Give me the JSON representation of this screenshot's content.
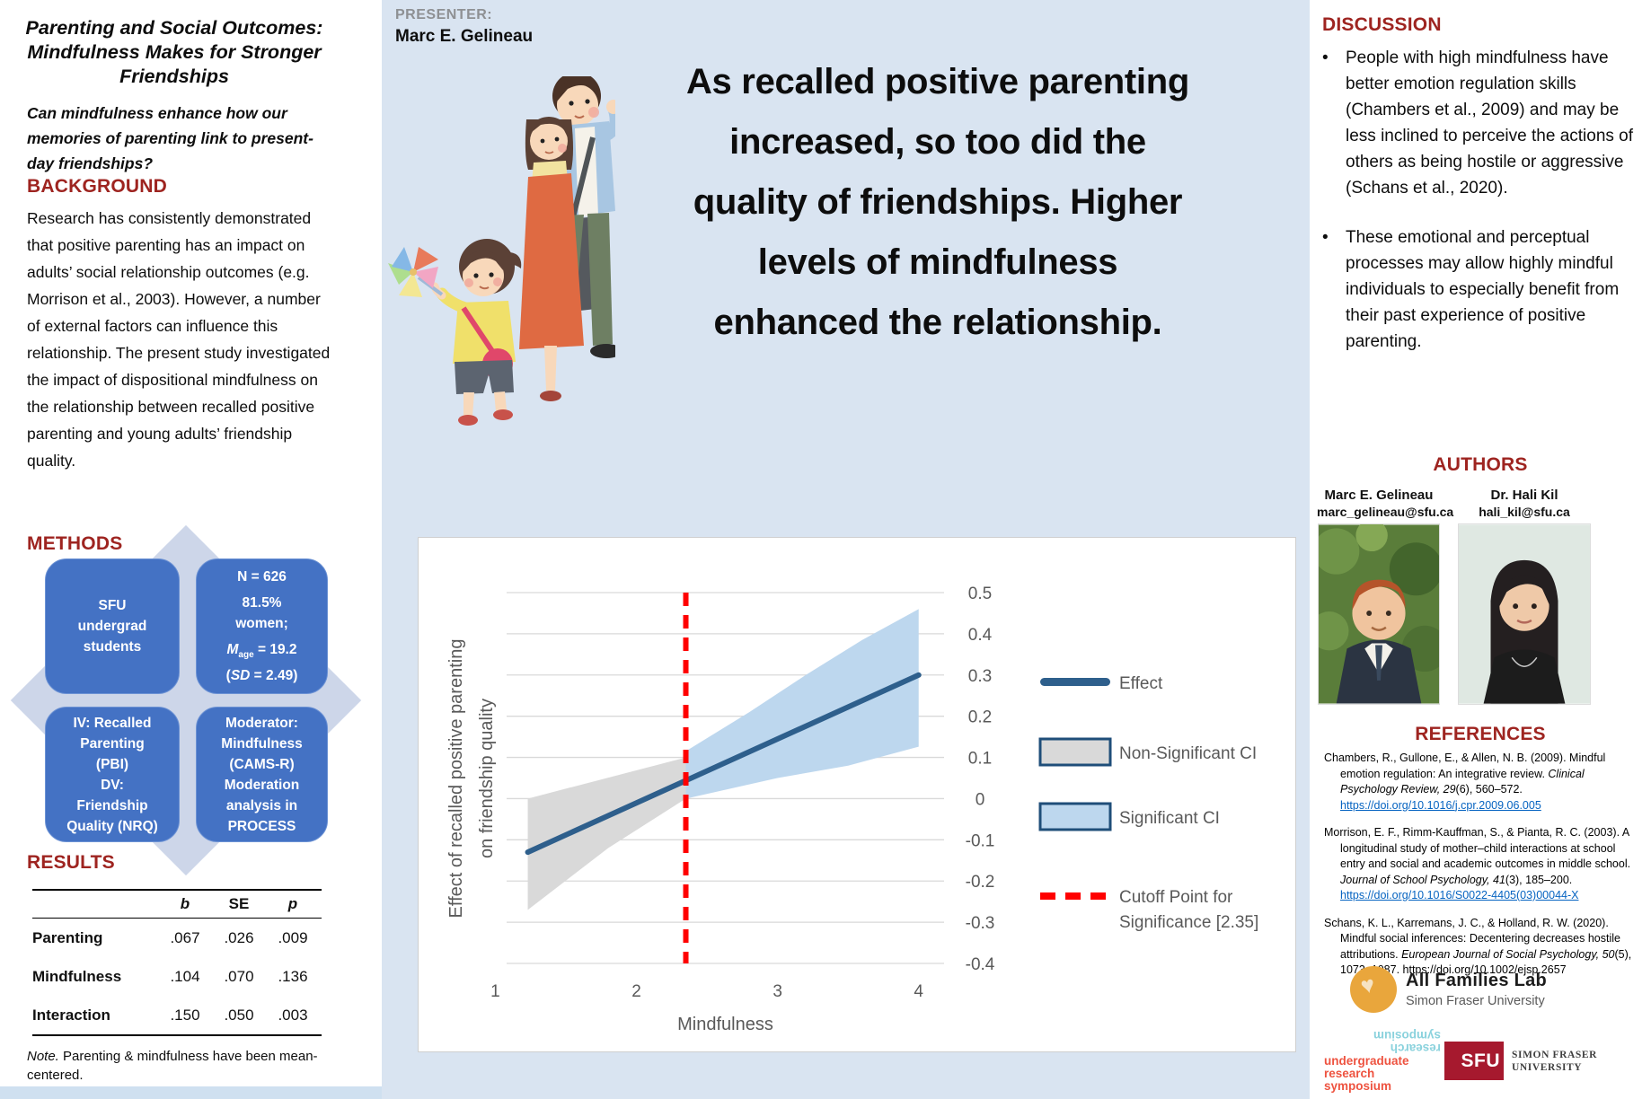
{
  "colors": {
    "heading_red": "#9e2420",
    "methods_box_blue": "#4472c4",
    "diamond_lilac": "#cdd6e9",
    "panel_blue": "#d9e4f1",
    "link_blue": "#0563c1",
    "presenter_gray": "#8e9093",
    "sfu_red": "#a6192e",
    "afl_orange": "#e9a63c",
    "urs_orange": "#ee5340",
    "urs_teal": "#8ad2dd"
  },
  "left": {
    "title": "Parenting and Social Outcomes:\nMindfulness Makes for Stronger\nFriendships",
    "subtitle": "Can mindfulness enhance how our\nmemories of parenting link to present-\nday friendships?",
    "background": {
      "heading": "BACKGROUND",
      "body": "Research has consistently demonstrated that positive parenting has an impact on adults’ social relationship outcomes (e.g. Morrison et al., 2003). However, a number of external factors can influence this relationship. The present study investigated the impact of dispositional mindfulness on the relationship between recalled positive parenting and young adults’ friendship quality."
    },
    "methods": {
      "heading": "METHODS",
      "box1": "SFU\nundergrad\nstudents",
      "box2_n": "N = 626",
      "box2_women": "81.5%\nwomen;",
      "box2_m": "M",
      "box2_sub": "age",
      "box2_eq": " = 19.2",
      "box2_open": "(",
      "box2_sd": "SD",
      "box2_close": " = 2.49)",
      "box3_a": "IV: Recalled\nParenting\n(PBI)",
      "box3_b": "DV:\nFriendship\nQuality (NRQ)",
      "box4_a": "Moderator:\nMindfulness\n(CAMS-R)",
      "box4_b": "Moderation\nanalysis in\nPROCESS"
    },
    "results": {
      "heading": "RESULTS",
      "table": {
        "headers": [
          "",
          "b",
          "SE",
          "p"
        ],
        "rows": [
          {
            "label": "Parenting",
            "b": ".067",
            "se": ".026",
            "p": ".009"
          },
          {
            "label": "Mindfulness",
            "b": ".104",
            "se": ".070",
            "p": ".136"
          },
          {
            "label": "Interaction",
            "b": ".150",
            "se": ".050",
            "p": ".003"
          }
        ]
      },
      "note_lead": "Note.",
      "note_rest": " Parenting & mindfulness have been mean-centered."
    }
  },
  "center": {
    "presenter_label": "PRESENTER:",
    "presenter_name": "Marc E. Gelineau",
    "headline": "As recalled positive parenting\nincreased, so too did the\nquality of friendships. Higher\nlevels of mindfulness\nenhanced the relationship."
  },
  "chart_data": {
    "type": "line",
    "title": "",
    "xlabel": "Mindfulness",
    "ylabel": "Effect of recalled positive parenting\non friendship quality",
    "xlim": [
      1.08,
      4.18
    ],
    "ylim": [
      -0.4,
      0.5
    ],
    "xticks": [
      1,
      2,
      3,
      4
    ],
    "yticks": [
      0.5,
      0.4,
      0.3,
      0.2,
      0.1,
      0,
      -0.1,
      -0.2,
      -0.3,
      -0.4
    ],
    "grid": "horizontal",
    "legend_position": "right",
    "colors": {
      "effect": "#2e5f8c",
      "nonsig": "#d9d9d9",
      "sig": "#bdd7ee",
      "cutoff": "#ff0000",
      "border": "#1f4e79",
      "grid": "#d9d9d9",
      "text": "#595959"
    },
    "series": [
      {
        "name": "Effect",
        "kind": "line",
        "points": [
          [
            1.23,
            -0.13
          ],
          [
            4.0,
            0.3
          ]
        ]
      },
      {
        "name": "Non-Significant CI",
        "kind": "band",
        "fill": "nonsig",
        "upper": [
          [
            1.23,
            0.0
          ],
          [
            2.35,
            0.1
          ]
        ],
        "lower": [
          [
            1.23,
            -0.27
          ],
          [
            1.8,
            -0.12
          ],
          [
            2.35,
            0.0
          ]
        ]
      },
      {
        "name": "Significant CI",
        "kind": "band",
        "fill": "sig",
        "upper": [
          [
            2.35,
            0.115
          ],
          [
            2.8,
            0.21
          ],
          [
            3.2,
            0.3
          ],
          [
            3.6,
            0.385
          ],
          [
            4.0,
            0.46
          ]
        ],
        "lower": [
          [
            2.35,
            0.0
          ],
          [
            3.0,
            0.05
          ],
          [
            3.5,
            0.08
          ],
          [
            4.0,
            0.126
          ]
        ]
      },
      {
        "name": "Cutoff Point for Significance",
        "kind": "vline",
        "x": 2.35
      }
    ],
    "cutoff_x": 2.35,
    "legend": [
      {
        "label": "Effect",
        "swatch": "line"
      },
      {
        "label": "Non-Significant CI",
        "swatch": "box-gray"
      },
      {
        "label": "Significant CI",
        "swatch": "box-blue"
      },
      {
        "label": "Cutoff Point for\nSignificance [2.35]",
        "swatch": "dash-red"
      }
    ]
  },
  "right": {
    "discussion": {
      "heading": "DISCUSSION",
      "bullets": [
        "People with high mindfulness have better emotion regulation skills (Chambers et al., 2009) and may be less inclined to perceive the actions of others as being hostile or aggressive (Schans et al., 2020).",
        "These emotional and perceptual processes may allow highly mindful individuals to especially benefit from their past experience of positive parenting."
      ]
    },
    "authors": {
      "heading": "AUTHORS",
      "people": [
        {
          "name": "Marc E. Gelineau",
          "email": "marc_gelineau@sfu.ca"
        },
        {
          "name": "Dr. Hali Kil",
          "email": "hali_kil@sfu.ca"
        }
      ]
    },
    "references": {
      "heading": "REFERENCES",
      "items": [
        {
          "pre": "Chambers, R., Gullone, E., & Allen, N. B. (2009). Mindful emotion regulation: An integrative review. ",
          "italic": "Clinical Psychology Review, 29",
          "post": "(6), 560–572. ",
          "link": "https://doi.org/10.1016/j.cpr.2009.06.005"
        },
        {
          "pre": "Morrison, E. F., Rimm-Kauffman, S., & Pianta, R. C. (2003). A longitudinal study of mother–child interactions at school entry and social and academic outcomes in middle school. ",
          "italic": "Journal of School Psychology, 41",
          "post": "(3), 185–200. ",
          "link": "https://doi.org/10.1016/S0022-4405(03)00044-X"
        },
        {
          "pre": "Schans, K. L., Karremans, J. C., & Holland, R. W. (2020). Mindful social inferences: Decentering decreases hostile attributions. ",
          "italic": "European Journal of Social Psychology, 50",
          "post": "(5), 1073–1087. https://doi.org/10.1002/ejsp.2657",
          "link": ""
        }
      ]
    },
    "logos": {
      "afl_name": "All Families Lab",
      "afl_sub": "Simon Fraser University",
      "urs_mirror": "research\nsymposium",
      "urs_main": "undergraduate\nresearch\nsymposium",
      "sfu_acronym": "SFU",
      "sfu_name": "SIMON FRASER\nUNIVERSITY"
    }
  }
}
